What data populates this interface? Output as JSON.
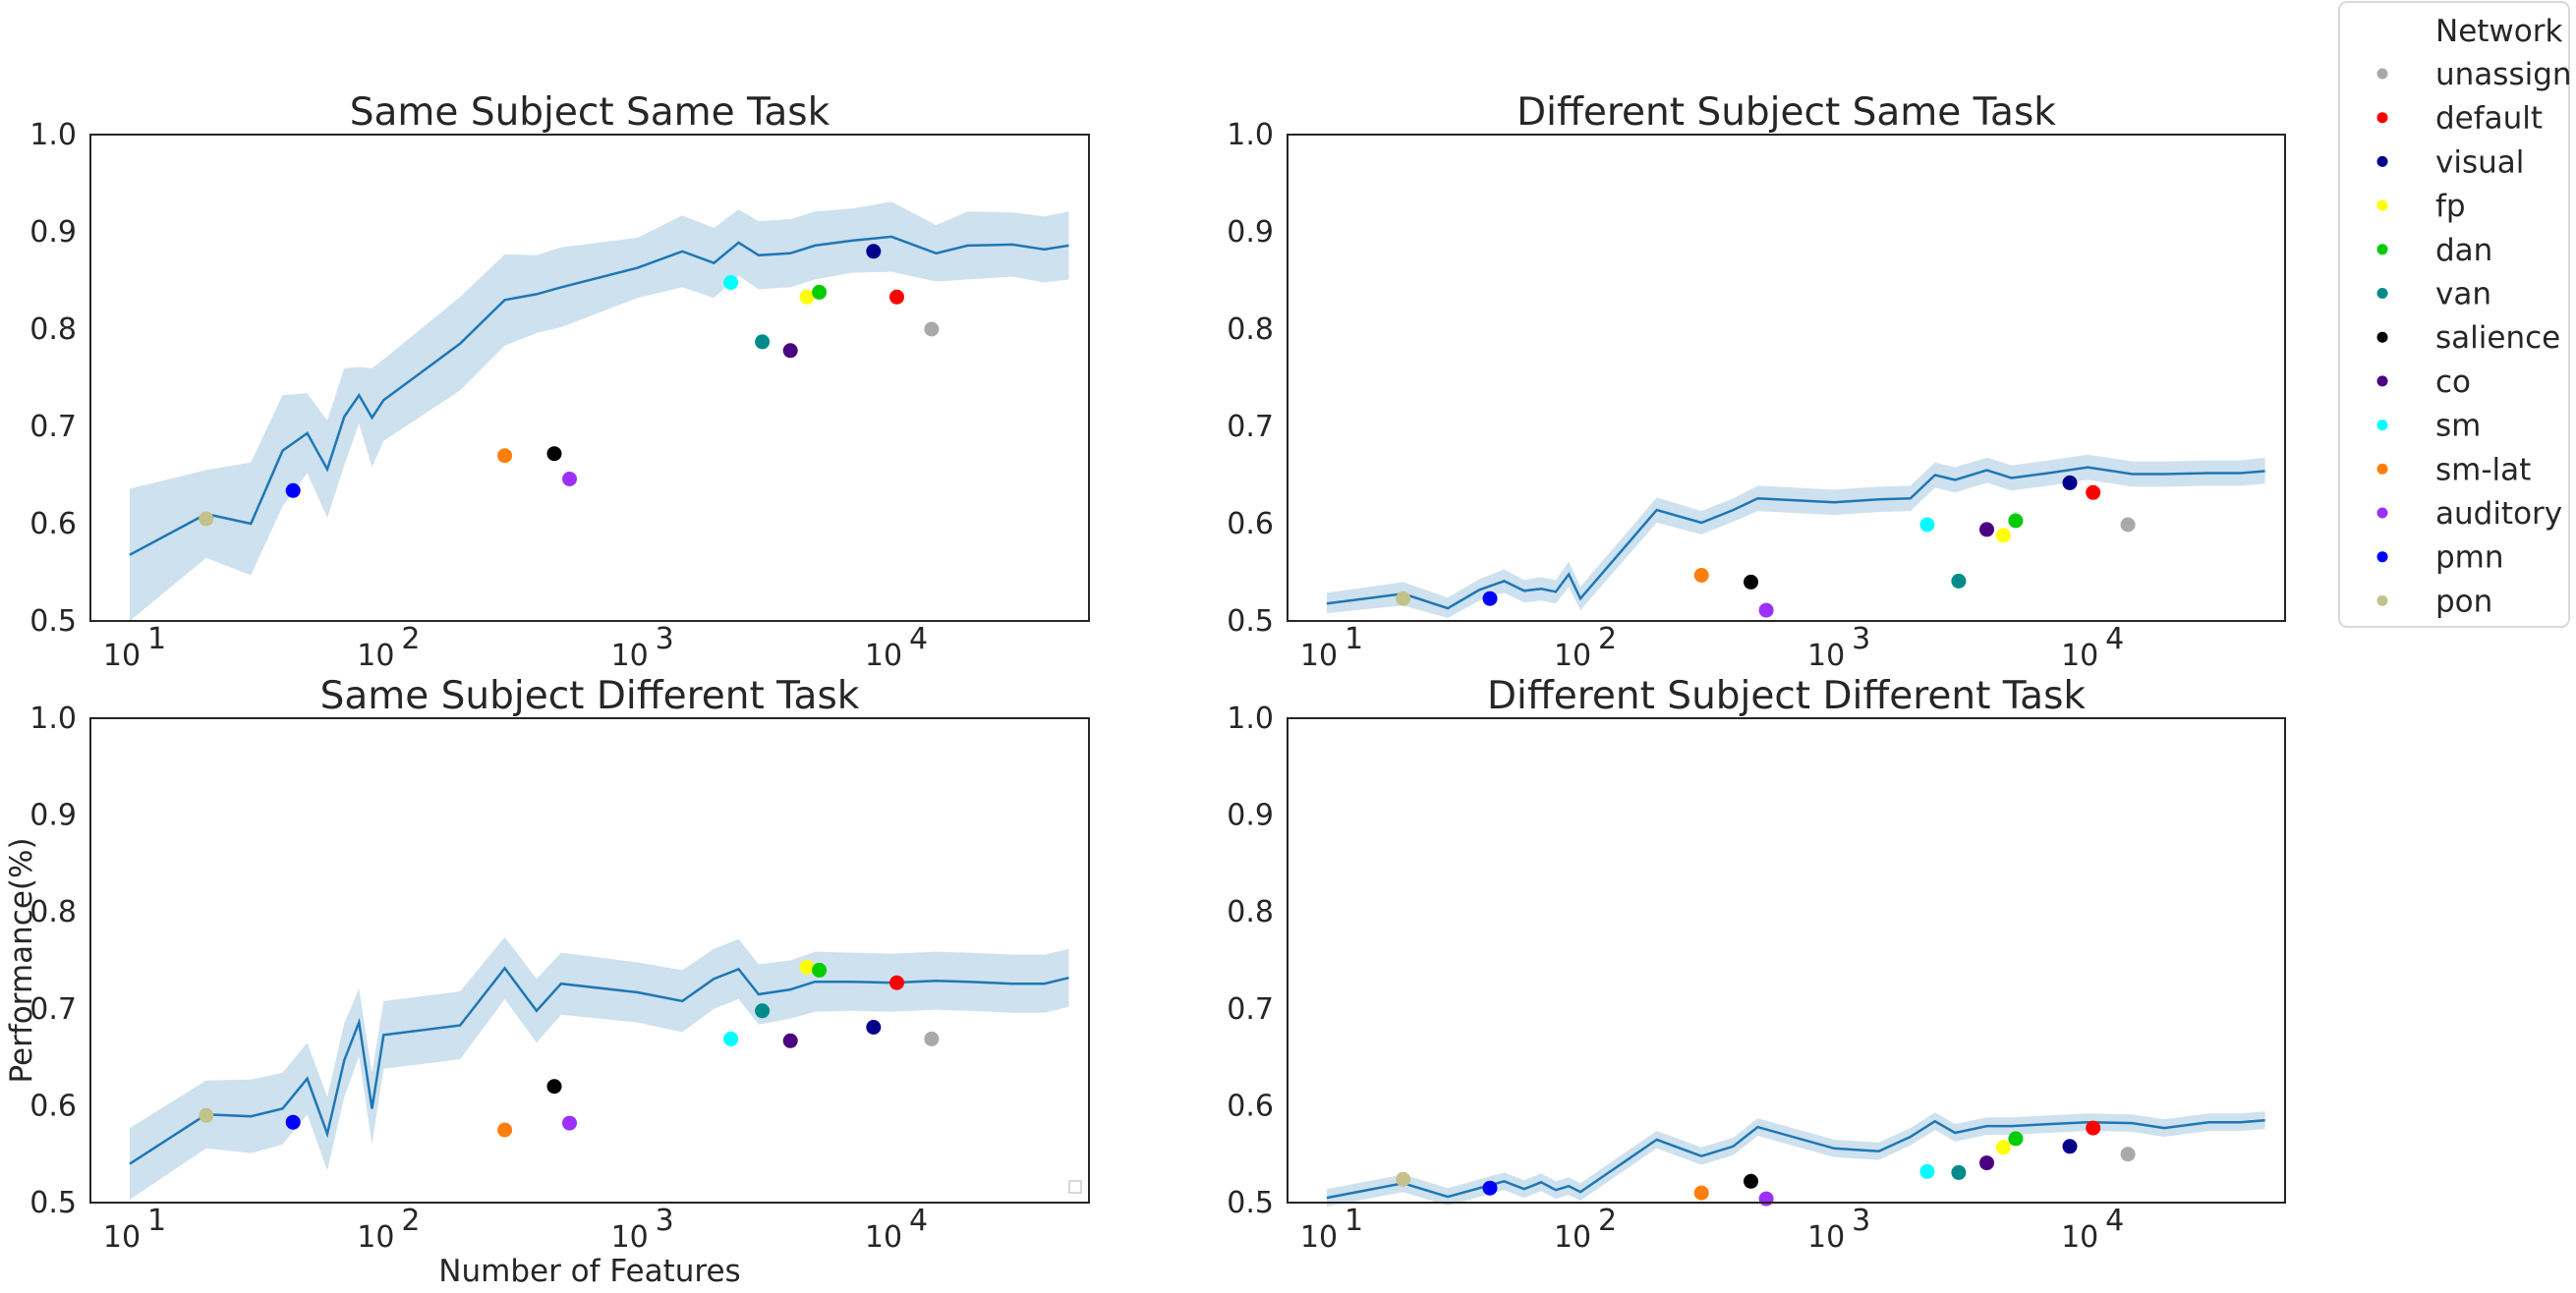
{
  "figure": {
    "legend": {
      "title": "Network",
      "entries": [
        {
          "label": "unassign",
          "color": "#a9a9a9"
        },
        {
          "label": "default",
          "color": "#ff0000"
        },
        {
          "label": "visual",
          "color": "#00008b"
        },
        {
          "label": "fp",
          "color": "#ffff00"
        },
        {
          "label": "dan",
          "color": "#00cc00"
        },
        {
          "label": "van",
          "color": "#008b8b"
        },
        {
          "label": "salience",
          "color": "#000000"
        },
        {
          "label": "co",
          "color": "#4b0082"
        },
        {
          "label": "sm",
          "color": "#00ffff"
        },
        {
          "label": "sm-lat",
          "color": "#ff7f0e"
        },
        {
          "label": "auditory",
          "color": "#9b30ff"
        },
        {
          "label": "pmn",
          "color": "#0000ff"
        },
        {
          "label": "pon",
          "color": "#c2c28a"
        }
      ]
    },
    "line_color": "#1f77b4",
    "band_color": "#1f77b4"
  },
  "chart_data": [
    {
      "type": "line",
      "title": "Same Subject Same Task",
      "xlabel": "",
      "ylabel": "",
      "xscale": "log",
      "xlim": [
        7,
        60000
      ],
      "ylim": [
        0.5,
        1.0
      ],
      "xticks": [
        10,
        100,
        1000,
        10000
      ],
      "xtick_labels": [
        {
          "base": "10",
          "exp": "1"
        },
        {
          "base": "10",
          "exp": "2"
        },
        {
          "base": "10",
          "exp": "3"
        },
        {
          "base": "10",
          "exp": "4"
        }
      ],
      "yticks": [
        "0.5",
        "0.6",
        "0.7",
        "0.8",
        "0.9",
        "1.0"
      ],
      "grid": false,
      "legend_box": false,
      "series": [
        {
          "x": [
            10,
            20,
            30,
            40,
            50,
            60,
            70,
            80,
            90,
            100,
            200,
            300,
            400,
            500,
            1000,
            1500,
            2000,
            2500,
            3000,
            4000,
            5000,
            7000,
            10000,
            15000,
            20000,
            30000,
            40000,
            50000
          ],
          "y": [
            0.568,
            0.61,
            0.6,
            0.675,
            0.693,
            0.656,
            0.71,
            0.732,
            0.709,
            0.727,
            0.785,
            0.83,
            0.836,
            0.843,
            0.863,
            0.88,
            0.868,
            0.889,
            0.876,
            0.878,
            0.886,
            0.891,
            0.895,
            0.878,
            0.886,
            0.887,
            0.882,
            0.886
          ],
          "lower": [
            0.5,
            0.565,
            0.547,
            0.618,
            0.652,
            0.606,
            0.66,
            0.703,
            0.658,
            0.685,
            0.737,
            0.783,
            0.796,
            0.802,
            0.832,
            0.843,
            0.832,
            0.855,
            0.841,
            0.843,
            0.851,
            0.858,
            0.859,
            0.849,
            0.851,
            0.854,
            0.848,
            0.851
          ],
          "upper": [
            0.636,
            0.655,
            0.663,
            0.732,
            0.734,
            0.706,
            0.76,
            0.761,
            0.76,
            0.769,
            0.833,
            0.877,
            0.876,
            0.884,
            0.894,
            0.917,
            0.904,
            0.923,
            0.911,
            0.913,
            0.921,
            0.924,
            0.931,
            0.907,
            0.921,
            0.92,
            0.916,
            0.921
          ]
        }
      ],
      "points": [
        {
          "network": "pon",
          "x": 20,
          "y": 0.605
        },
        {
          "network": "pmn",
          "x": 44,
          "y": 0.634
        },
        {
          "network": "sm-lat",
          "x": 300,
          "y": 0.67
        },
        {
          "network": "salience",
          "x": 470,
          "y": 0.672
        },
        {
          "network": "auditory",
          "x": 540,
          "y": 0.646
        },
        {
          "network": "sm",
          "x": 2330,
          "y": 0.848
        },
        {
          "network": "van",
          "x": 3100,
          "y": 0.787
        },
        {
          "network": "co",
          "x": 4000,
          "y": 0.778
        },
        {
          "network": "fp",
          "x": 4650,
          "y": 0.833
        },
        {
          "network": "dan",
          "x": 5200,
          "y": 0.838
        },
        {
          "network": "visual",
          "x": 8500,
          "y": 0.88
        },
        {
          "network": "default",
          "x": 10500,
          "y": 0.833
        },
        {
          "network": "unassign",
          "x": 14400,
          "y": 0.8
        }
      ]
    },
    {
      "type": "line",
      "title": "Different Subject Same Task",
      "xlabel": "",
      "ylabel": "",
      "xscale": "log",
      "xlim": [
        7,
        60000
      ],
      "ylim": [
        0.5,
        1.0
      ],
      "xticks": [
        10,
        100,
        1000,
        10000
      ],
      "xtick_labels": [
        {
          "base": "10",
          "exp": "1"
        },
        {
          "base": "10",
          "exp": "2"
        },
        {
          "base": "10",
          "exp": "3"
        },
        {
          "base": "10",
          "exp": "4"
        }
      ],
      "yticks": [
        "0.5",
        "0.6",
        "0.7",
        "0.8",
        "0.9",
        "1.0"
      ],
      "grid": false,
      "legend_box": false,
      "series": [
        {
          "x": [
            10,
            20,
            30,
            40,
            50,
            60,
            70,
            80,
            90,
            100,
            200,
            300,
            400,
            500,
            1000,
            1500,
            2000,
            2500,
            3000,
            4000,
            5000,
            7000,
            10000,
            15000,
            20000,
            30000,
            40000,
            50000
          ],
          "y": [
            0.518,
            0.528,
            0.513,
            0.532,
            0.541,
            0.531,
            0.533,
            0.53,
            0.548,
            0.523,
            0.614,
            0.601,
            0.614,
            0.626,
            0.622,
            0.625,
            0.626,
            0.65,
            0.645,
            0.655,
            0.647,
            0.652,
            0.658,
            0.651,
            0.651,
            0.652,
            0.652,
            0.654
          ],
          "lower": [
            0.508,
            0.516,
            0.503,
            0.521,
            0.529,
            0.519,
            0.521,
            0.518,
            0.535,
            0.511,
            0.601,
            0.589,
            0.602,
            0.613,
            0.609,
            0.612,
            0.613,
            0.637,
            0.632,
            0.642,
            0.634,
            0.639,
            0.645,
            0.638,
            0.638,
            0.639,
            0.639,
            0.641
          ],
          "upper": [
            0.529,
            0.54,
            0.524,
            0.543,
            0.553,
            0.542,
            0.545,
            0.542,
            0.561,
            0.535,
            0.627,
            0.613,
            0.626,
            0.639,
            0.635,
            0.638,
            0.639,
            0.663,
            0.658,
            0.668,
            0.66,
            0.665,
            0.671,
            0.664,
            0.664,
            0.665,
            0.665,
            0.668
          ]
        }
      ],
      "points": [
        {
          "network": "pon",
          "x": 20,
          "y": 0.523
        },
        {
          "network": "pmn",
          "x": 44,
          "y": 0.523
        },
        {
          "network": "sm-lat",
          "x": 300,
          "y": 0.547
        },
        {
          "network": "salience",
          "x": 470,
          "y": 0.54
        },
        {
          "network": "auditory",
          "x": 540,
          "y": 0.511
        },
        {
          "network": "sm",
          "x": 2330,
          "y": 0.599
        },
        {
          "network": "van",
          "x": 3100,
          "y": 0.541
        },
        {
          "network": "co",
          "x": 4000,
          "y": 0.594
        },
        {
          "network": "fp",
          "x": 4650,
          "y": 0.588
        },
        {
          "network": "dan",
          "x": 5200,
          "y": 0.603
        },
        {
          "network": "visual",
          "x": 8500,
          "y": 0.642
        },
        {
          "network": "default",
          "x": 10500,
          "y": 0.632
        },
        {
          "network": "unassign",
          "x": 14400,
          "y": 0.599
        }
      ]
    },
    {
      "type": "line",
      "title": "Same Subject Different Task",
      "xlabel": "Number of Features",
      "ylabel": "Performance(%)",
      "xscale": "log",
      "xlim": [
        7,
        60000
      ],
      "ylim": [
        0.5,
        1.0
      ],
      "xticks": [
        10,
        100,
        1000,
        10000
      ],
      "xtick_labels": [
        {
          "base": "10",
          "exp": "1"
        },
        {
          "base": "10",
          "exp": "2"
        },
        {
          "base": "10",
          "exp": "3"
        },
        {
          "base": "10",
          "exp": "4"
        }
      ],
      "yticks": [
        "0.5",
        "0.6",
        "0.7",
        "0.8",
        "0.9",
        "1.0"
      ],
      "grid": false,
      "legend_box": true,
      "series": [
        {
          "x": [
            10,
            20,
            30,
            40,
            50,
            60,
            70,
            80,
            90,
            100,
            200,
            300,
            400,
            500,
            1000,
            1500,
            2000,
            2500,
            3000,
            4000,
            5000,
            7000,
            10000,
            15000,
            20000,
            30000,
            40000,
            50000
          ],
          "y": [
            0.54,
            0.591,
            0.589,
            0.597,
            0.628,
            0.571,
            0.647,
            0.686,
            0.597,
            0.673,
            0.683,
            0.742,
            0.698,
            0.726,
            0.717,
            0.708,
            0.731,
            0.741,
            0.715,
            0.72,
            0.728,
            0.728,
            0.727,
            0.729,
            0.728,
            0.726,
            0.726,
            0.732
          ],
          "lower": [
            0.503,
            0.556,
            0.551,
            0.56,
            0.591,
            0.533,
            0.609,
            0.651,
            0.56,
            0.638,
            0.648,
            0.71,
            0.665,
            0.694,
            0.686,
            0.676,
            0.7,
            0.71,
            0.684,
            0.69,
            0.697,
            0.698,
            0.697,
            0.699,
            0.698,
            0.696,
            0.696,
            0.702
          ],
          "upper": [
            0.577,
            0.626,
            0.627,
            0.634,
            0.665,
            0.609,
            0.685,
            0.721,
            0.634,
            0.708,
            0.718,
            0.774,
            0.731,
            0.758,
            0.748,
            0.74,
            0.762,
            0.772,
            0.746,
            0.75,
            0.759,
            0.758,
            0.757,
            0.759,
            0.758,
            0.756,
            0.756,
            0.762
          ]
        }
      ],
      "points": [
        {
          "network": "pon",
          "x": 20,
          "y": 0.59
        },
        {
          "network": "pmn",
          "x": 44,
          "y": 0.583
        },
        {
          "network": "sm-lat",
          "x": 300,
          "y": 0.575
        },
        {
          "network": "salience",
          "x": 470,
          "y": 0.62
        },
        {
          "network": "auditory",
          "x": 540,
          "y": 0.582
        },
        {
          "network": "sm",
          "x": 2330,
          "y": 0.669
        },
        {
          "network": "van",
          "x": 3100,
          "y": 0.698
        },
        {
          "network": "co",
          "x": 4000,
          "y": 0.667
        },
        {
          "network": "fp",
          "x": 4650,
          "y": 0.743
        },
        {
          "network": "dan",
          "x": 5200,
          "y": 0.74
        },
        {
          "network": "visual",
          "x": 8500,
          "y": 0.681
        },
        {
          "network": "default",
          "x": 10500,
          "y": 0.727
        },
        {
          "network": "unassign",
          "x": 14400,
          "y": 0.669
        }
      ]
    },
    {
      "type": "line",
      "title": "Different Subject Different Task",
      "xlabel": "",
      "ylabel": "",
      "xscale": "log",
      "xlim": [
        7,
        60000
      ],
      "ylim": [
        0.5,
        1.0
      ],
      "xticks": [
        10,
        100,
        1000,
        10000
      ],
      "xtick_labels": [
        {
          "base": "10",
          "exp": "1"
        },
        {
          "base": "10",
          "exp": "2"
        },
        {
          "base": "10",
          "exp": "3"
        },
        {
          "base": "10",
          "exp": "4"
        }
      ],
      "yticks": [
        "0.5",
        "0.6",
        "0.7",
        "0.8",
        "0.9",
        "1.0"
      ],
      "grid": false,
      "legend_box": false,
      "series": [
        {
          "x": [
            10,
            20,
            30,
            40,
            50,
            60,
            70,
            80,
            90,
            100,
            200,
            300,
            400,
            500,
            1000,
            1500,
            2000,
            2500,
            3000,
            4000,
            5000,
            7000,
            10000,
            15000,
            20000,
            30000,
            40000,
            50000
          ],
          "y": [
            0.505,
            0.52,
            0.506,
            0.515,
            0.522,
            0.514,
            0.521,
            0.513,
            0.517,
            0.511,
            0.565,
            0.548,
            0.558,
            0.578,
            0.556,
            0.553,
            0.568,
            0.584,
            0.572,
            0.579,
            0.579,
            0.581,
            0.583,
            0.582,
            0.577,
            0.583,
            0.583,
            0.585
          ],
          "lower": [
            0.496,
            0.511,
            0.497,
            0.506,
            0.513,
            0.505,
            0.512,
            0.504,
            0.508,
            0.502,
            0.556,
            0.539,
            0.549,
            0.569,
            0.547,
            0.544,
            0.559,
            0.575,
            0.563,
            0.57,
            0.57,
            0.572,
            0.574,
            0.573,
            0.568,
            0.574,
            0.574,
            0.576
          ],
          "upper": [
            0.514,
            0.529,
            0.515,
            0.524,
            0.531,
            0.523,
            0.53,
            0.522,
            0.526,
            0.52,
            0.574,
            0.557,
            0.567,
            0.587,
            0.565,
            0.562,
            0.577,
            0.593,
            0.581,
            0.588,
            0.588,
            0.59,
            0.592,
            0.591,
            0.586,
            0.592,
            0.592,
            0.594
          ]
        }
      ],
      "points": [
        {
          "network": "pon",
          "x": 20,
          "y": 0.524
        },
        {
          "network": "pmn",
          "x": 44,
          "y": 0.515
        },
        {
          "network": "sm-lat",
          "x": 300,
          "y": 0.51
        },
        {
          "network": "salience",
          "x": 470,
          "y": 0.522
        },
        {
          "network": "auditory",
          "x": 540,
          "y": 0.504
        },
        {
          "network": "sm",
          "x": 2330,
          "y": 0.532
        },
        {
          "network": "van",
          "x": 3100,
          "y": 0.531
        },
        {
          "network": "co",
          "x": 4000,
          "y": 0.541
        },
        {
          "network": "fp",
          "x": 4650,
          "y": 0.557
        },
        {
          "network": "dan",
          "x": 5200,
          "y": 0.566
        },
        {
          "network": "visual",
          "x": 8500,
          "y": 0.558
        },
        {
          "network": "default",
          "x": 10500,
          "y": 0.577
        },
        {
          "network": "unassign",
          "x": 14400,
          "y": 0.55
        }
      ]
    }
  ]
}
